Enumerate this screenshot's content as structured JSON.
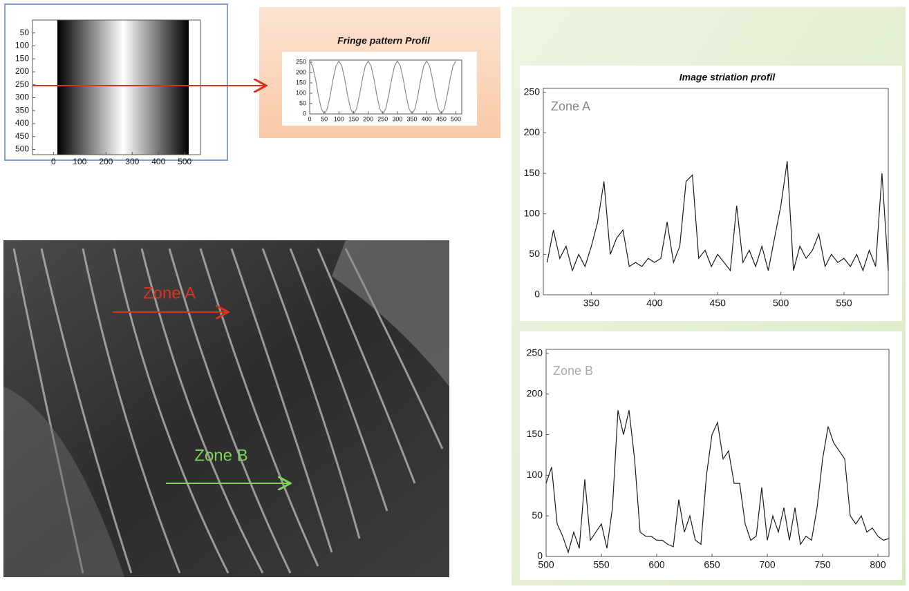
{
  "chart_data": [
    {
      "type": "image",
      "xlim": [
        -80,
        560
      ],
      "ylim": [
        520,
        0
      ],
      "xticks": [
        0,
        100,
        200,
        300,
        400,
        500
      ],
      "yticks": [
        50,
        100,
        150,
        200,
        250,
        300,
        350,
        400,
        450,
        500
      ]
    },
    {
      "type": "line",
      "title": "Fringe pattern Profil",
      "color": "#8a8a8a",
      "xlim": [
        0,
        520
      ],
      "ylim": [
        0,
        260
      ],
      "xticks": [
        0,
        50,
        100,
        150,
        200,
        250,
        300,
        350,
        400,
        450,
        500
      ],
      "yticks": [
        0,
        50,
        100,
        150,
        200,
        250
      ],
      "x": [
        0,
        10,
        20,
        30,
        40,
        50,
        60,
        70,
        80,
        90,
        100,
        110,
        120,
        130,
        140,
        150,
        160,
        170,
        180,
        190,
        200,
        210,
        220,
        230,
        240,
        250,
        260,
        270,
        280,
        290,
        300,
        310,
        320,
        330,
        340,
        350,
        360,
        370,
        380,
        390,
        400,
        410,
        420,
        430,
        440,
        450,
        460,
        470,
        480,
        490,
        500
      ],
      "values": [
        255,
        231,
        167,
        88,
        24,
        0,
        24,
        88,
        167,
        231,
        255,
        231,
        167,
        88,
        24,
        0,
        24,
        88,
        167,
        231,
        255,
        231,
        167,
        88,
        24,
        0,
        24,
        88,
        167,
        231,
        255,
        231,
        167,
        88,
        24,
        0,
        24,
        88,
        167,
        231,
        255,
        231,
        167,
        88,
        24,
        0,
        24,
        88,
        167,
        231,
        255
      ]
    },
    {
      "type": "line",
      "title": "Image striation profil",
      "annotation": "Zone A",
      "color": "#1a1a1a",
      "xlim": [
        312,
        585
      ],
      "ylim": [
        0,
        255
      ],
      "xticks": [
        350,
        400,
        450,
        500,
        550
      ],
      "yticks": [
        0,
        50,
        100,
        150,
        200,
        250
      ],
      "x": [
        315,
        320,
        325,
        330,
        335,
        340,
        345,
        350,
        355,
        360,
        365,
        370,
        375,
        380,
        385,
        390,
        395,
        400,
        405,
        410,
        415,
        420,
        425,
        430,
        435,
        440,
        445,
        450,
        455,
        460,
        465,
        470,
        475,
        480,
        485,
        490,
        495,
        500,
        505,
        510,
        515,
        520,
        525,
        530,
        535,
        540,
        545,
        550,
        555,
        560,
        565,
        570,
        575,
        580,
        585
      ],
      "values": [
        40,
        80,
        45,
        60,
        30,
        50,
        35,
        60,
        90,
        140,
        50,
        70,
        80,
        35,
        40,
        35,
        45,
        40,
        45,
        90,
        40,
        60,
        140,
        148,
        45,
        55,
        35,
        50,
        40,
        30,
        110,
        40,
        55,
        35,
        60,
        30,
        70,
        110,
        165,
        30,
        60,
        45,
        55,
        75,
        35,
        50,
        40,
        45,
        35,
        50,
        30,
        55,
        35,
        150,
        30
      ]
    },
    {
      "type": "line",
      "annotation": "Zone B",
      "color": "#1a1a1a",
      "xlim": [
        500,
        810
      ],
      "ylim": [
        0,
        255
      ],
      "xticks": [
        500,
        550,
        600,
        650,
        700,
        750,
        800
      ],
      "yticks": [
        0,
        50,
        100,
        150,
        200,
        250
      ],
      "x": [
        500,
        505,
        510,
        515,
        520,
        525,
        530,
        535,
        540,
        545,
        550,
        555,
        560,
        565,
        570,
        575,
        580,
        585,
        590,
        595,
        600,
        605,
        610,
        615,
        620,
        625,
        630,
        635,
        640,
        645,
        650,
        655,
        660,
        665,
        670,
        675,
        680,
        685,
        690,
        695,
        700,
        705,
        710,
        715,
        720,
        725,
        730,
        735,
        740,
        745,
        750,
        755,
        760,
        765,
        770,
        775,
        780,
        785,
        790,
        795,
        800,
        805,
        810
      ],
      "values": [
        90,
        110,
        40,
        25,
        5,
        30,
        10,
        95,
        20,
        30,
        40,
        10,
        60,
        180,
        150,
        180,
        120,
        30,
        25,
        25,
        20,
        20,
        15,
        12,
        70,
        30,
        50,
        20,
        15,
        100,
        150,
        165,
        120,
        130,
        90,
        90,
        40,
        20,
        25,
        85,
        20,
        50,
        30,
        60,
        20,
        60,
        15,
        25,
        20,
        60,
        120,
        160,
        140,
        130,
        120,
        50,
        40,
        50,
        30,
        35,
        25,
        20,
        22
      ]
    }
  ],
  "photo": {
    "annotations": [
      "Zone A",
      "Zone B"
    ]
  }
}
